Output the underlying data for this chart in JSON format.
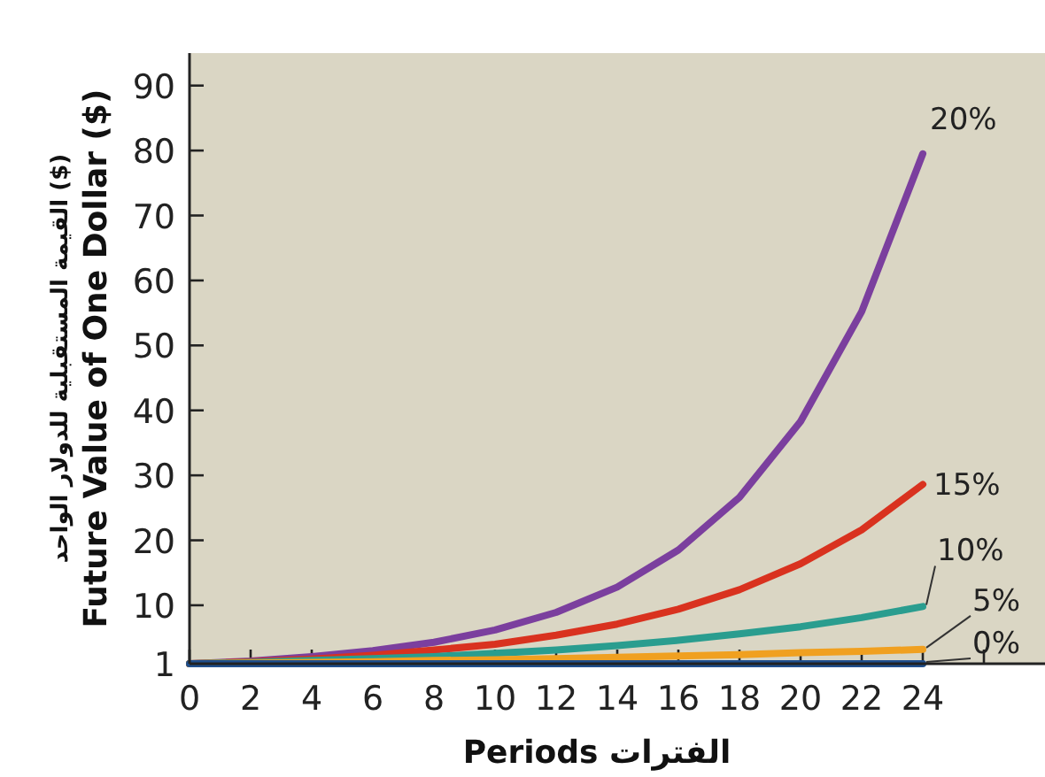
{
  "chart_data": {
    "type": "line",
    "xlabel": "Periods الفترات",
    "ylabel": "القيمة المستقبلية للدولار الواحد ($)\nFuture Value of One Dollar ($)",
    "x": [
      0,
      2,
      4,
      6,
      8,
      10,
      12,
      14,
      16,
      18,
      20,
      22,
      24
    ],
    "series": [
      {
        "name": "20%",
        "color": "#7b3f9e",
        "values": [
          1,
          1.4,
          2.1,
          3,
          4.3,
          6.2,
          8.9,
          12.8,
          18.5,
          26.6,
          38.3,
          55.2,
          79.5
        ]
      },
      {
        "name": "15%",
        "color": "#d9321f",
        "values": [
          1,
          1.3,
          1.7,
          2.3,
          3.1,
          4,
          5.4,
          7.1,
          9.4,
          12.4,
          16.4,
          21.6,
          28.6
        ]
      },
      {
        "name": "10%",
        "color": "#2a9d8f",
        "values": [
          1,
          1.2,
          1.5,
          1.8,
          2.1,
          2.6,
          3.1,
          3.8,
          4.6,
          5.6,
          6.7,
          8.1,
          9.8
        ]
      },
      {
        "name": "5%",
        "color": "#f0a020",
        "values": [
          1,
          1.1,
          1.2,
          1.3,
          1.5,
          1.6,
          1.8,
          2,
          2.2,
          2.4,
          2.7,
          2.9,
          3.2
        ]
      },
      {
        "name": "0%",
        "color": "#1f4e8c",
        "values": [
          1,
          1,
          1,
          1,
          1,
          1,
          1,
          1,
          1,
          1,
          1,
          1,
          1
        ]
      }
    ],
    "xlim": [
      0,
      28
    ],
    "ylim": [
      1,
      95
    ],
    "xticks": [
      0,
      2,
      4,
      6,
      8,
      10,
      12,
      14,
      16,
      18,
      20,
      22,
      24,
      {
        "value": 26,
        "label": null
      }
    ],
    "yticks": [
      1,
      10,
      20,
      30,
      40,
      50,
      60,
      70,
      80,
      90
    ]
  }
}
